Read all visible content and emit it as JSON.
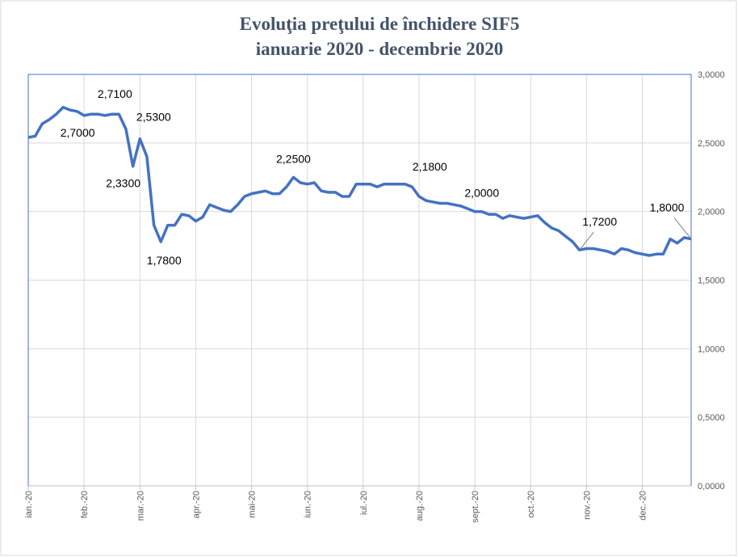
{
  "chart_data": {
    "type": "line",
    "title": "Evoluţia preţului de închidere SIF5",
    "subtitle": "ianuarie 2020 - decembrie 2020",
    "categories": [
      "ian.-20",
      null,
      null,
      null,
      null,
      null,
      null,
      null,
      "feb.-20",
      null,
      null,
      null,
      null,
      null,
      null,
      null,
      "mar.-20",
      null,
      null,
      null,
      null,
      null,
      null,
      null,
      "apr.-20",
      null,
      null,
      null,
      null,
      null,
      null,
      null,
      "mai-20",
      null,
      null,
      null,
      null,
      null,
      null,
      null,
      "iun.-20",
      null,
      null,
      null,
      null,
      null,
      null,
      null,
      "iul.-20",
      null,
      null,
      null,
      null,
      null,
      null,
      null,
      "aug.-20",
      null,
      null,
      null,
      null,
      null,
      null,
      null,
      "sept.-20",
      null,
      null,
      null,
      null,
      null,
      null,
      null,
      "oct.-20",
      null,
      null,
      null,
      null,
      null,
      null,
      null,
      "nov.-20",
      null,
      null,
      null,
      null,
      null,
      null,
      null,
      "dec.-20",
      null,
      null,
      null,
      null,
      null,
      null,
      null
    ],
    "series": [
      {
        "name": "SIF5",
        "color": "#4472c4",
        "values": [
          2.54,
          2.55,
          2.64,
          2.67,
          2.71,
          2.76,
          2.74,
          2.73,
          2.7,
          2.71,
          2.71,
          2.7,
          2.71,
          2.71,
          2.6,
          2.33,
          2.53,
          2.4,
          1.9,
          1.78,
          1.9,
          1.9,
          1.98,
          1.97,
          1.93,
          1.96,
          2.05,
          2.03,
          2.01,
          2.0,
          2.05,
          2.11,
          2.13,
          2.14,
          2.15,
          2.13,
          2.13,
          2.18,
          2.25,
          2.21,
          2.2,
          2.21,
          2.15,
          2.14,
          2.14,
          2.11,
          2.11,
          2.2,
          2.2,
          2.2,
          2.18,
          2.2,
          2.2,
          2.2,
          2.2,
          2.18,
          2.11,
          2.08,
          2.07,
          2.06,
          2.06,
          2.05,
          2.04,
          2.02,
          2.0,
          2.0,
          1.98,
          1.98,
          1.95,
          1.97,
          1.96,
          1.95,
          1.96,
          1.97,
          1.92,
          1.88,
          1.86,
          1.82,
          1.78,
          1.72,
          1.73,
          1.73,
          1.72,
          1.71,
          1.69,
          1.73,
          1.72,
          1.7,
          1.69,
          1.68,
          1.69,
          1.69,
          1.8,
          1.77,
          1.81,
          1.8
        ],
        "value_labels": [
          null,
          null,
          null,
          null,
          null,
          null,
          null,
          null,
          "2,7000",
          null,
          null,
          null,
          null,
          "2,7100",
          null,
          "2,3300",
          "2,5300",
          null,
          null,
          "1,7800",
          null,
          null,
          null,
          null,
          null,
          null,
          null,
          null,
          null,
          null,
          null,
          null,
          null,
          null,
          null,
          null,
          null,
          null,
          "2,2500",
          null,
          null,
          null,
          null,
          null,
          null,
          null,
          null,
          null,
          null,
          null,
          null,
          null,
          null,
          null,
          null,
          "2,1800",
          null,
          null,
          null,
          null,
          null,
          null,
          null,
          null,
          null,
          "2,0000",
          null,
          null,
          null,
          null,
          null,
          null,
          null,
          null,
          null,
          null,
          null,
          null,
          null,
          "1,7200",
          null,
          null,
          null,
          null,
          null,
          null,
          null,
          null,
          null,
          null,
          null,
          null,
          null,
          null,
          null,
          "1,8000"
        ]
      }
    ],
    "ylim": [
      0,
      3
    ],
    "yticks": [
      {
        "value": 0,
        "label": "0,0000"
      },
      {
        "value": 0.5,
        "label": "0,5000"
      },
      {
        "value": 1,
        "label": "1,0000"
      },
      {
        "value": 1.5,
        "label": "1,5000"
      },
      {
        "value": 2,
        "label": "2,0000"
      },
      {
        "value": 2.5,
        "label": "2,5000"
      },
      {
        "value": 3,
        "label": "3,0000"
      }
    ],
    "grid": true
  }
}
